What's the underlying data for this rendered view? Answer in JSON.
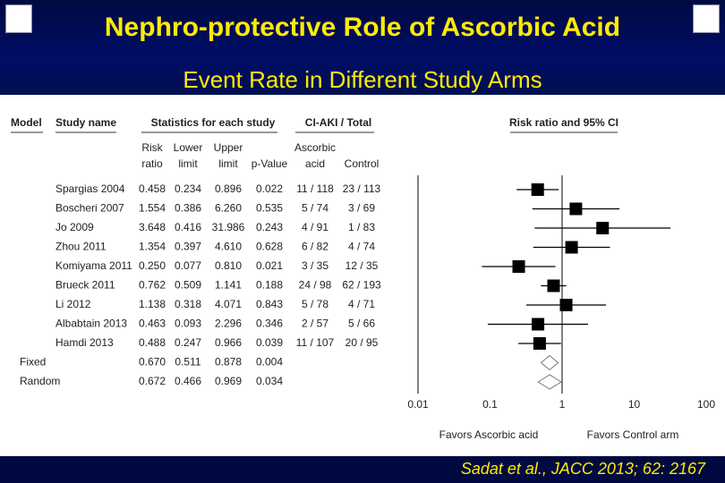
{
  "header": {
    "title": "Nephro-protective Role of Ascorbic Acid",
    "subtitle": "Event Rate in Different Study Arms"
  },
  "footer": "Sadat et al., JACC 2013; 62: 2167",
  "chart_data": {
    "type": "forest",
    "group_headers": {
      "model": "Model",
      "study": "Study name",
      "stats": "Statistics for each study",
      "events": "CI-AKI / Total",
      "plot": "Risk ratio and 95% CI"
    },
    "columns": [
      "Risk ratio",
      "Lower limit",
      "Upper limit",
      "p-Value",
      "Ascorbic acid",
      "Control"
    ],
    "rows": [
      {
        "study": "Spargias 2004",
        "rr": "0.458",
        "lower": "0.234",
        "upper": "0.896",
        "p": "0.022",
        "ascorbic": "11 / 118",
        "control": "23 / 113"
      },
      {
        "study": "Boscheri 2007",
        "rr": "1.554",
        "lower": "0.386",
        "upper": "6.260",
        "p": "0.535",
        "ascorbic": "5 / 74",
        "control": "3 / 69"
      },
      {
        "study": "Jo 2009",
        "rr": "3.648",
        "lower": "0.416",
        "upper": "31.986",
        "p": "0.243",
        "ascorbic": "4 / 91",
        "control": "1 / 83"
      },
      {
        "study": "Zhou 2011",
        "rr": "1.354",
        "lower": "0.397",
        "upper": "4.610",
        "p": "0.628",
        "ascorbic": "6 / 82",
        "control": "4 / 74"
      },
      {
        "study": "Komiyama 2011",
        "rr": "0.250",
        "lower": "0.077",
        "upper": "0.810",
        "p": "0.021",
        "ascorbic": "3 / 35",
        "control": "12 / 35"
      },
      {
        "study": "Brueck 2011",
        "rr": "0.762",
        "lower": "0.509",
        "upper": "1.141",
        "p": "0.188",
        "ascorbic": "24 / 98",
        "control": "62 / 193"
      },
      {
        "study": "Li 2012",
        "rr": "1.138",
        "lower": "0.318",
        "upper": "4.071",
        "p": "0.843",
        "ascorbic": "5 / 78",
        "control": "4 / 71"
      },
      {
        "study": "Albabtain 2013",
        "rr": "0.463",
        "lower": "0.093",
        "upper": "2.296",
        "p": "0.346",
        "ascorbic": "2 / 57",
        "control": "5 / 66"
      },
      {
        "study": "Hamdi 2013",
        "rr": "0.488",
        "lower": "0.247",
        "upper": "0.966",
        "p": "0.039",
        "ascorbic": "11 / 107",
        "control": "20 / 95"
      },
      {
        "model": "Fixed",
        "rr": "0.670",
        "lower": "0.511",
        "upper": "0.878",
        "p": "0.004"
      },
      {
        "model": "Random",
        "rr": "0.672",
        "lower": "0.466",
        "upper": "0.969",
        "p": "0.034"
      }
    ],
    "log": true,
    "xlim": [
      0.01,
      100
    ],
    "xticks": [
      0.01,
      0.1,
      1,
      10,
      100
    ],
    "favors": [
      "Favors Ascorbic acid",
      "Favors Control arm"
    ]
  }
}
